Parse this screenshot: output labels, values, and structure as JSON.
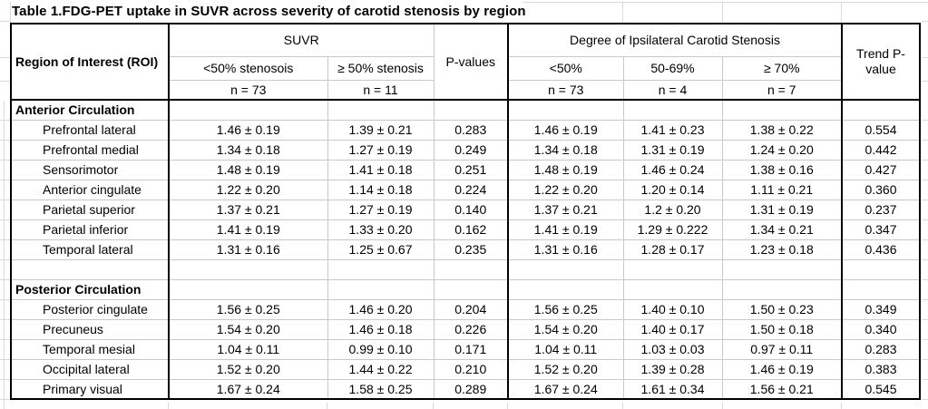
{
  "title": "Table 1.FDG-PET uptake in SUVR across severity of carotid stenosis by region",
  "table": {
    "roi_header": "Region of Interest (ROI)",
    "suvr": {
      "label": "SUVR",
      "cols": [
        {
          "label": "<50% stenosois",
          "n": "n = 73"
        },
        {
          "label": "≥ 50% stenosis",
          "n": "n = 11"
        }
      ]
    },
    "pvalues_label": "P-values",
    "stenosis": {
      "label": "Degree of Ipsilateral Carotid Stenosis",
      "cols": [
        {
          "label": "<50%",
          "n": "n = 73"
        },
        {
          "label": "50-69%",
          "n": "n = 4"
        },
        {
          "label": "≥ 70%",
          "n": "n = 7"
        }
      ]
    },
    "trend_label": "Trend P-value",
    "rows": [
      {
        "type": "section",
        "label": "Anterior Circulation"
      },
      {
        "type": "data",
        "label": "Prefrontal lateral",
        "values": [
          "1.46 ± 0.19",
          "1.39 ± 0.21",
          "0.283",
          "1.46 ± 0.19",
          "1.41 ± 0.23",
          "1.38 ± 0.22",
          "0.554"
        ]
      },
      {
        "type": "data",
        "label": "Prefrontal medial",
        "values": [
          "1.34 ± 0.18",
          "1.27 ± 0.19",
          "0.249",
          "1.34 ± 0.18",
          "1.31 ± 0.19",
          "1.24 ± 0.20",
          "0.442"
        ]
      },
      {
        "type": "data",
        "label": "Sensorimotor",
        "values": [
          "1.48 ± 0.19",
          "1.41 ± 0.18",
          "0.251",
          "1.48 ± 0.19",
          "1.46 ± 0.24",
          "1.38 ± 0.16",
          "0.427"
        ]
      },
      {
        "type": "data",
        "label": "Anterior cingulate",
        "values": [
          "1.22 ± 0.20",
          "1.14 ± 0.18",
          "0.224",
          "1.22 ± 0.20",
          "1.20 ± 0.14",
          "1.11 ± 0.21",
          "0.360"
        ]
      },
      {
        "type": "data",
        "label": "Parietal superior",
        "values": [
          "1.37 ± 0.21",
          "1.27 ± 0.19",
          "0.140",
          "1.37 ± 0.21",
          "1.2 ± 0.20",
          "1.31 ± 0.19",
          "0.237"
        ]
      },
      {
        "type": "data",
        "label": "Parietal inferior",
        "values": [
          "1.41 ± 0.19",
          "1.33 ± 0.20",
          "0.162",
          "1.41 ± 0.19",
          "1.29 ± 0.222",
          "1.34 ± 0.21",
          "0.347"
        ]
      },
      {
        "type": "data",
        "label": "Temporal lateral",
        "values": [
          "1.31 ± 0.16",
          "1.25 ± 0.67",
          "0.235",
          "1.31 ± 0.16",
          "1.28 ± 0.17",
          "1.23 ± 0.18",
          "0.436"
        ]
      },
      {
        "type": "empty"
      },
      {
        "type": "section",
        "label": "Posterior Circulation"
      },
      {
        "type": "data",
        "label": "Posterior cingulate",
        "values": [
          "1.56 ± 0.25",
          "1.46 ± 0.20",
          "0.204",
          "1.56 ± 0.25",
          "1.40 ± 0.10",
          "1.50 ± 0.23",
          "0.349"
        ]
      },
      {
        "type": "data",
        "label": "Precuneus",
        "values": [
          "1.54 ± 0.20",
          "1.46 ± 0.18",
          "0.226",
          "1.54 ± 0.20",
          "1.40 ± 0.17",
          "1.50 ± 0.18",
          "0.340"
        ]
      },
      {
        "type": "data",
        "label": "Temporal mesial",
        "values": [
          "1.04 ± 0.11",
          "0.99 ± 0.10",
          "0.171",
          "1.04 ± 0.11",
          "1.03 ± 0.03",
          "0.97 ± 0.11",
          "0.283"
        ]
      },
      {
        "type": "data",
        "label": "Occipital lateral",
        "values": [
          "1.52 ± 0.20",
          "1.44 ± 0.22",
          "0.210",
          "1.52 ± 0.20",
          "1.39 ± 0.28",
          "1.46 ± 0.19",
          "0.383"
        ]
      },
      {
        "type": "data",
        "label": "Primary visual",
        "values": [
          "1.67 ± 0.24",
          "1.58 ± 0.25",
          "0.289",
          "1.67 ± 0.24",
          "1.61 ± 0.34",
          "1.56 ± 0.21",
          "0.545"
        ]
      }
    ]
  }
}
